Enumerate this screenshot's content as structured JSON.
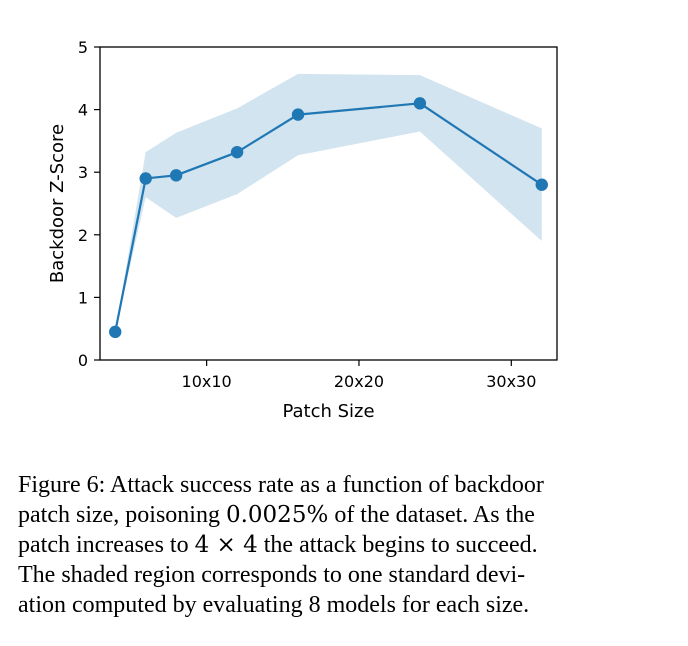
{
  "chart_data": {
    "type": "line",
    "xlabel": "Patch Size",
    "ylabel": "Backdoor Z-Score",
    "x_ticks": [
      {
        "value": 10,
        "label": "10x10"
      },
      {
        "value": 20,
        "label": "20x20"
      },
      {
        "value": 30,
        "label": "30x30"
      }
    ],
    "y_ticks": [
      0,
      1,
      2,
      3,
      4,
      5
    ],
    "xlim": [
      3,
      33
    ],
    "ylim": [
      0,
      5
    ],
    "grid": false,
    "color": "#1f77b4",
    "band_color": "#1f77b4",
    "series": [
      {
        "x": [
          4,
          6,
          8,
          12,
          16,
          24,
          32
        ],
        "y": [
          0.45,
          2.9,
          2.95,
          3.32,
          3.92,
          4.1,
          2.8
        ],
        "lower": [
          0.45,
          2.6,
          2.27,
          2.65,
          3.27,
          3.65,
          1.9
        ],
        "upper": [
          0.45,
          3.32,
          3.63,
          4.02,
          4.57,
          4.55,
          3.7
        ]
      }
    ]
  },
  "caption": {
    "line1": "Figure 6: Attack success rate as a function of backdoor",
    "line2a": "patch size, poisoning ",
    "line2math": "0.0025%",
    "line2b": " of the dataset. As the",
    "line3a": "patch increases to ",
    "line3math": "4 × 4",
    "line3b": " the attack begins to succeed.",
    "line4": "The shaded region corresponds to one standard devi-",
    "line5": "ation computed by evaluating 8 models for each size."
  }
}
